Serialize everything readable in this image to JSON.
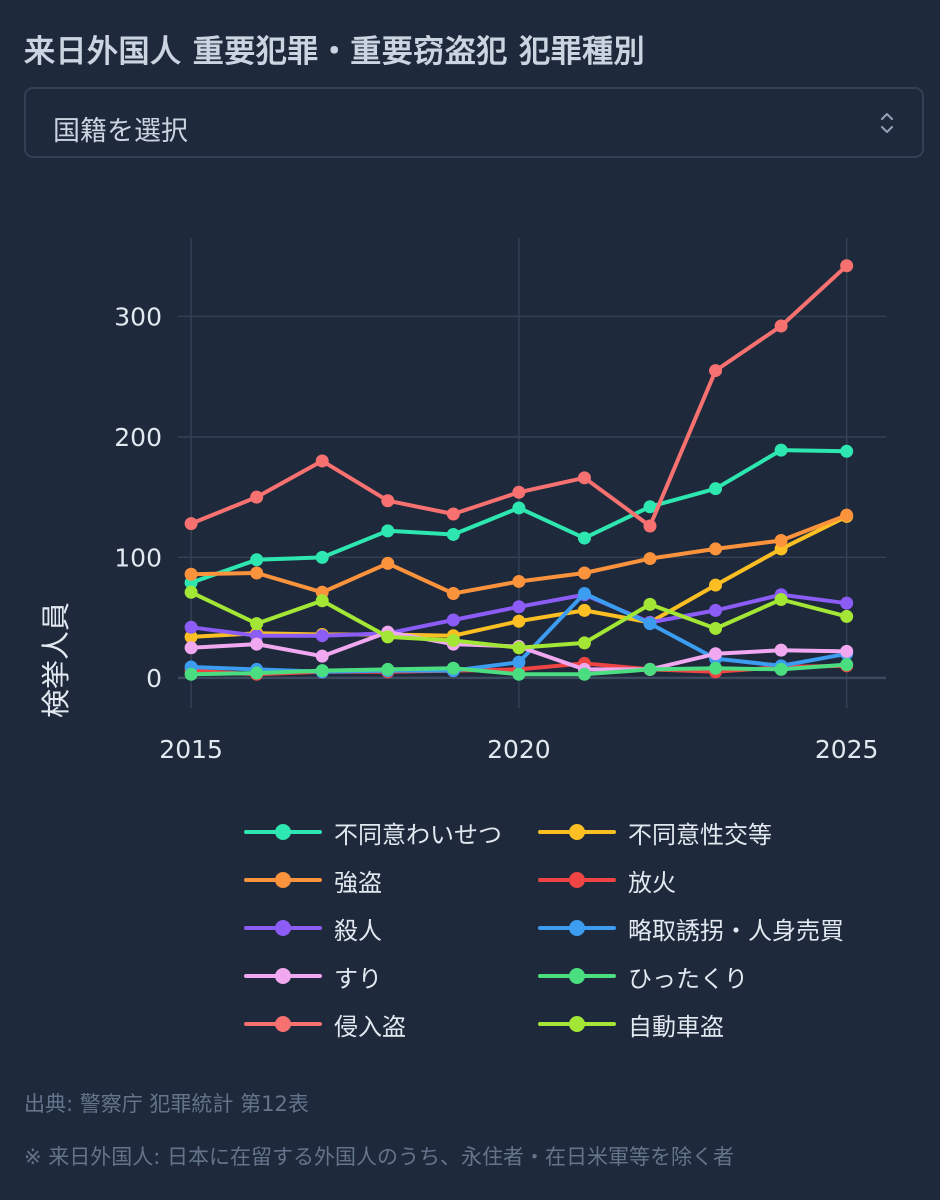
{
  "header": {
    "title": "来日外国人 重要犯罪・重要窃盗犯 犯罪種別"
  },
  "nationality_select": {
    "value": "国籍を選択"
  },
  "chart_data": {
    "type": "line",
    "ylabel": "検挙人員",
    "xlim": [
      2014.8,
      2025.6
    ],
    "ylim": [
      -25,
      365
    ],
    "x_ticks": [
      2015,
      2020,
      2025
    ],
    "y_ticks": [
      0,
      100,
      200,
      300
    ],
    "grid": true,
    "legend_position": "bottom",
    "x": [
      2015,
      2016,
      2017,
      2018,
      2019,
      2020,
      2021,
      2022,
      2023,
      2024,
      2025
    ],
    "series": [
      {
        "name": "不同意わいせつ",
        "color": "#2ee6b0",
        "values": [
          79,
          98,
          100,
          122,
          119,
          141,
          116,
          142,
          157,
          189,
          188
        ]
      },
      {
        "name": "不同意性交等",
        "color": "#fbbf24",
        "values": [
          34,
          37,
          36,
          36,
          35,
          47,
          56,
          46,
          77,
          107,
          134
        ]
      },
      {
        "name": "強盗",
        "color": "#fb923c",
        "values": [
          86,
          87,
          71,
          95,
          70,
          80,
          87,
          99,
          107,
          114,
          135
        ]
      },
      {
        "name": "放火",
        "color": "#ef4444",
        "values": [
          6,
          3,
          5,
          5,
          6,
          7,
          12,
          7,
          5,
          9,
          10
        ]
      },
      {
        "name": "殺人",
        "color": "#8b5cf6",
        "values": [
          42,
          35,
          35,
          37,
          48,
          59,
          69,
          46,
          56,
          69,
          62
        ]
      },
      {
        "name": "略取誘拐・人身売買",
        "color": "#3b9cf0",
        "values": [
          9,
          7,
          5,
          6,
          6,
          13,
          70,
          45,
          16,
          10,
          20
        ]
      },
      {
        "name": "すり",
        "color": "#f0a8f0",
        "values": [
          25,
          28,
          18,
          38,
          28,
          26,
          7,
          7,
          20,
          23,
          22
        ]
      },
      {
        "name": "ひったくり",
        "color": "#4ade80",
        "values": [
          3,
          4,
          6,
          7,
          8,
          3,
          3,
          7,
          8,
          7,
          11
        ]
      },
      {
        "name": "侵入盗",
        "color": "#f87171",
        "values": [
          128,
          150,
          180,
          147,
          136,
          154,
          166,
          126,
          255,
          292,
          342
        ]
      },
      {
        "name": "自動車盗",
        "color": "#a3e635",
        "values": [
          71,
          45,
          64,
          34,
          31,
          25,
          29,
          61,
          41,
          65,
          51
        ]
      }
    ]
  },
  "legend": {
    "items": [
      "不同意わいせつ",
      "不同意性交等",
      "強盗",
      "放火",
      "殺人",
      "略取誘拐・人身売買",
      "すり",
      "ひったくり",
      "侵入盗",
      "自動車盗"
    ]
  },
  "footer": {
    "source": "出典: 警察庁 犯罪統計 第12表",
    "note": "※ 来日外国人: 日本に在留する外国人のうち、永住者・在日米軍等を除く者"
  }
}
